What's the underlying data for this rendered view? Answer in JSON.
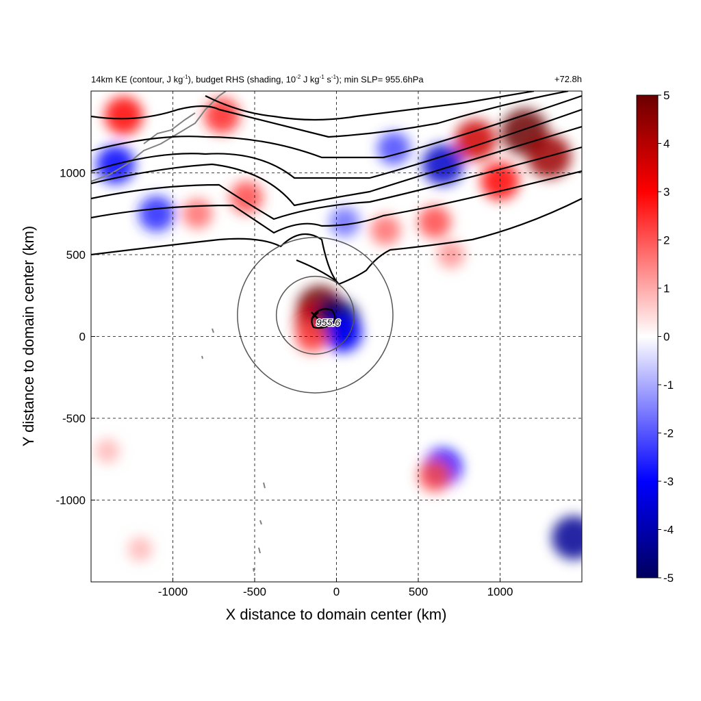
{
  "header": {
    "title_parts": [
      "14km KE (contour, J kg",
      "-1",
      "), budget RHS (shading, 10",
      "-2",
      " J kg",
      "-1",
      " s",
      "-1",
      "); min SLP= 955.6hPa"
    ],
    "forecast_hour": "+72.8h"
  },
  "chart_data": {
    "type": "heatmap",
    "title": "14km KE (contour, J kg-1), budget RHS (shading, 10-2 J kg-1 s-1); min SLP= 955.6hPa",
    "time_label": "+72.8h",
    "xlabel": "X distance to domain center (km)",
    "ylabel": "Y distance to domain center (km)",
    "xlim": [
      -1500,
      1500
    ],
    "ylim": [
      -1500,
      1500
    ],
    "xticks": [
      -1000,
      -500,
      0,
      500,
      1000
    ],
    "yticks": [
      -1000,
      -500,
      0,
      500,
      1000
    ],
    "x_tick_labels": [
      "-1000",
      "-500",
      "0",
      "500",
      "1000"
    ],
    "y_tick_labels": [
      "-1000",
      "-500",
      "0",
      "500",
      "1000"
    ],
    "grid": "dashed",
    "colorbar": {
      "min": -5,
      "max": 5,
      "ticks": [
        5,
        4,
        3,
        2,
        1,
        0,
        -1,
        -2,
        -3,
        -4,
        -5
      ],
      "tick_labels": [
        "5",
        "4",
        "3",
        "2",
        "1",
        "0",
        "-1",
        "-2",
        "-3",
        "-4",
        "-5"
      ],
      "colormap": [
        "#00005e",
        "#0000ff",
        "#ffffff",
        "#ff0000",
        "#6b0000"
      ]
    },
    "storm_center": {
      "x": -130,
      "y": 130,
      "marker": "x",
      "label": "955.6"
    },
    "range_rings_km": [
      500,
      1000
    ],
    "shading_features": [
      {
        "x": -1300,
        "y": 1350,
        "value": 3.5
      },
      {
        "x": -700,
        "y": 1350,
        "value": 3.0
      },
      {
        "x": 850,
        "y": 1200,
        "value": 4.0
      },
      {
        "x": 1150,
        "y": 1250,
        "value": 5.0
      },
      {
        "x": 1300,
        "y": 1100,
        "value": 4.5
      },
      {
        "x": 1000,
        "y": 950,
        "value": 3.5
      },
      {
        "x": 600,
        "y": 700,
        "value": 2.5
      },
      {
        "x": -1350,
        "y": 1050,
        "value": -3.5
      },
      {
        "x": -1100,
        "y": 750,
        "value": -3.0
      },
      {
        "x": 650,
        "y": 1050,
        "value": -4.0
      },
      {
        "x": 350,
        "y": 1150,
        "value": -2.5
      },
      {
        "x": -850,
        "y": 750,
        "value": 2.0
      },
      {
        "x": -550,
        "y": 850,
        "value": 2.5
      },
      {
        "x": 50,
        "y": 700,
        "value": -2.0
      },
      {
        "x": 300,
        "y": 650,
        "value": 2.0
      },
      {
        "x": 700,
        "y": 500,
        "value": 1.5
      },
      {
        "x": -100,
        "y": 170,
        "value": 5.0
      },
      {
        "x": -130,
        "y": 80,
        "value": 4.0
      },
      {
        "x": 0,
        "y": 90,
        "value": -5.0
      },
      {
        "x": 40,
        "y": 20,
        "value": -3.5
      },
      {
        "x": -150,
        "y": 0,
        "value": 2.5
      },
      {
        "x": 650,
        "y": -800,
        "value": -3.5
      },
      {
        "x": 600,
        "y": -850,
        "value": 2.5
      },
      {
        "x": -1400,
        "y": -700,
        "value": 1.0
      },
      {
        "x": -1200,
        "y": -1300,
        "value": 1.0
      },
      {
        "x": 1450,
        "y": -1230,
        "value": -4.5
      }
    ]
  }
}
